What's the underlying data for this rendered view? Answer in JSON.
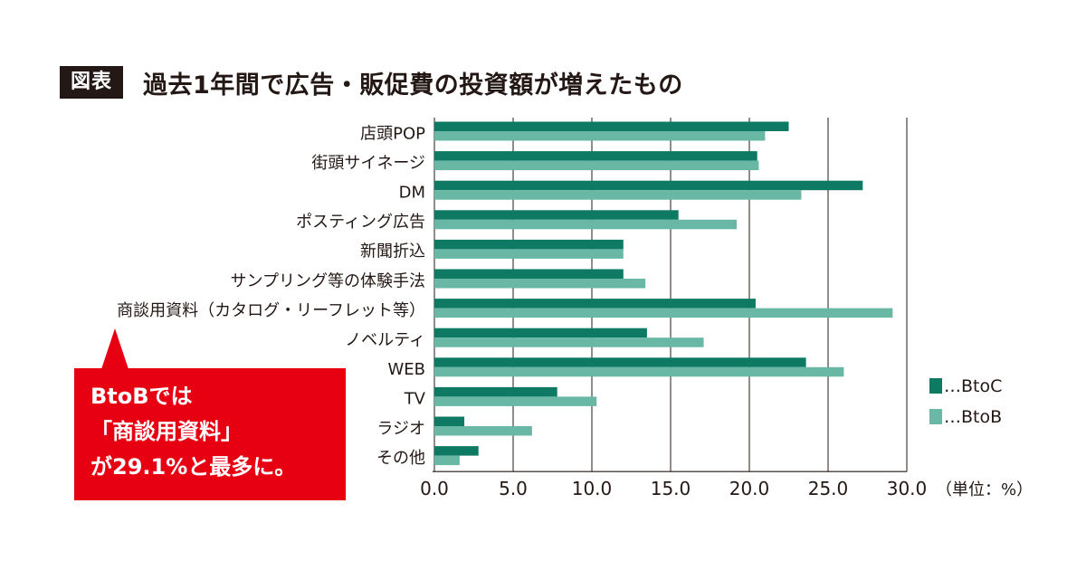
{
  "header": {
    "badge": "図表",
    "title": "過去1年間で広告・販促費の投資額が増えたもの"
  },
  "callout": {
    "lines": [
      "BtoBでは",
      "「商談用資料」",
      "が29.1%と最多に。"
    ]
  },
  "colors": {
    "btoc": "#0f7a64",
    "btob": "#68b8a5",
    "grid": "#231815",
    "callout": "#e60012"
  },
  "chart_data": {
    "type": "bar",
    "orientation": "horizontal",
    "categories": [
      "店頭POP",
      "街頭サイネージ",
      "DM",
      "ポスティング広告",
      "新聞折込",
      "サンプリング等の体験手法",
      "商談用資料（カタログ・リーフレット等）",
      "ノベルティ",
      "WEB",
      "TV",
      "ラジオ",
      "その他"
    ],
    "series": [
      {
        "name": "…BtoC",
        "color": "#0f7a64",
        "values": [
          22.5,
          20.5,
          27.2,
          15.5,
          12.0,
          12.0,
          20.4,
          13.5,
          23.6,
          7.8,
          1.9,
          2.8
        ]
      },
      {
        "name": "…BtoB",
        "color": "#68b8a5",
        "values": [
          21.0,
          20.6,
          23.3,
          19.2,
          12.0,
          13.4,
          29.1,
          17.1,
          26.0,
          10.3,
          6.2,
          1.6
        ]
      }
    ],
    "xlim": [
      0,
      30
    ],
    "xticks": [
      "0.0",
      "5.0",
      "10.0",
      "15.0",
      "20.0",
      "25.0",
      "30.0"
    ],
    "unit_label": "（単位：%）",
    "grid": "vertical",
    "legend_position": "right"
  }
}
